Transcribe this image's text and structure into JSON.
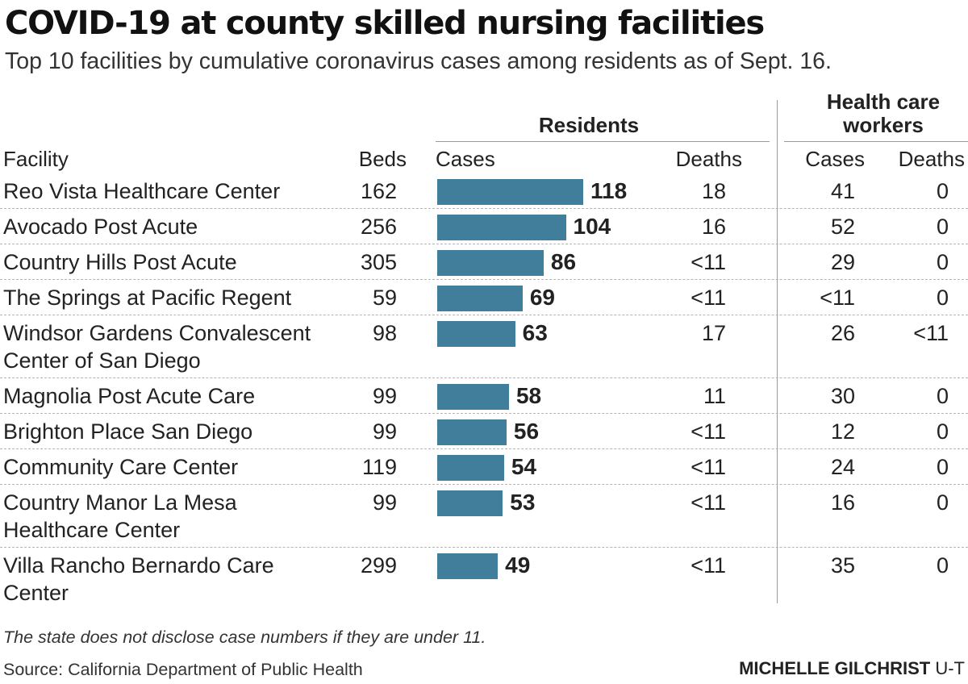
{
  "chart_data": {
    "type": "table",
    "title": "COVID-19 at county skilled nursing facilities",
    "subtitle": "Top 10 facilities by cumulative coronavirus cases among residents as of Sept. 16.",
    "group_headers": {
      "residents": "Residents",
      "workers": "Health care workers"
    },
    "columns": {
      "facility": "Facility",
      "beds": "Beds",
      "resident_cases": "Cases",
      "resident_deaths": "Deaths",
      "worker_cases": "Cases",
      "worker_deaths": "Deaths"
    },
    "bar_max": 118,
    "rows": [
      {
        "facility": "Reo Vista Healthcare Center",
        "beds": "162",
        "cases": 118,
        "deaths": "18",
        "hc_cases": "41",
        "hc_deaths": "0"
      },
      {
        "facility": "Avocado Post Acute",
        "beds": "256",
        "cases": 104,
        "deaths": "16",
        "hc_cases": "52",
        "hc_deaths": "0"
      },
      {
        "facility": "Country Hills Post Acute",
        "beds": "305",
        "cases": 86,
        "deaths": "<11",
        "hc_cases": "29",
        "hc_deaths": "0"
      },
      {
        "facility": "The Springs at Pacific Regent",
        "beds": "59",
        "cases": 69,
        "deaths": "<11",
        "hc_cases": "<11",
        "hc_deaths": "0"
      },
      {
        "facility": "Windsor Gardens Convalescent Center of San Diego",
        "beds": "98",
        "cases": 63,
        "deaths": "17",
        "hc_cases": "26",
        "hc_deaths": "<11"
      },
      {
        "facility": "Magnolia Post Acute Care",
        "beds": "99",
        "cases": 58,
        "deaths": "11",
        "hc_cases": "30",
        "hc_deaths": "0"
      },
      {
        "facility": "Brighton Place San Diego",
        "beds": "99",
        "cases": 56,
        "deaths": "<11",
        "hc_cases": "12",
        "hc_deaths": "0"
      },
      {
        "facility": "Community Care Center",
        "beds": "119",
        "cases": 54,
        "deaths": "<11",
        "hc_cases": "24",
        "hc_deaths": "0"
      },
      {
        "facility": "Country Manor La Mesa Healthcare Center",
        "beds": "99",
        "cases": 53,
        "deaths": "<11",
        "hc_cases": "16",
        "hc_deaths": "0"
      },
      {
        "facility": "Villa Rancho Bernardo Care Center",
        "beds": "299",
        "cases": 49,
        "deaths": "<11",
        "hc_cases": "35",
        "hc_deaths": "0"
      }
    ],
    "note": "The state does not disclose case numbers if they are under 11.",
    "source": "Source: California Department of Public Health",
    "credit_name": "MICHELLE GILCHRIST",
    "credit_org": "U-T",
    "colors": {
      "bar": "#417e9b"
    }
  }
}
